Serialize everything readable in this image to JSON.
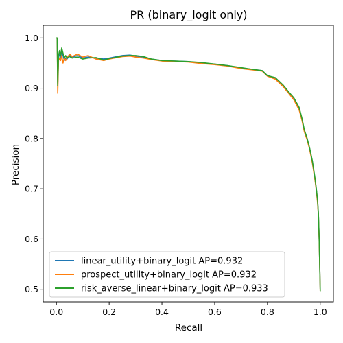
{
  "chart_data": {
    "type": "line",
    "title": "PR (binary_logit only)",
    "xlabel": "Recall",
    "ylabel": "Precision",
    "xlim": [
      -0.05,
      1.05
    ],
    "ylim": [
      0.475,
      1.025
    ],
    "x_ticks": [
      0.0,
      0.2,
      0.4,
      0.6,
      0.8,
      1.0
    ],
    "x_tick_labels": [
      "0.0",
      "0.2",
      "0.4",
      "0.6",
      "0.8",
      "1.0"
    ],
    "y_ticks": [
      0.5,
      0.6,
      0.7,
      0.8,
      0.9,
      1.0
    ],
    "y_tick_labels": [
      "0.5",
      "0.6",
      "0.7",
      "0.8",
      "0.9",
      "1.0"
    ],
    "grid": false,
    "legend_position": "lower-left",
    "series": [
      {
        "name": "linear_utility+binary_logit AP=0.932",
        "color": "#1f77b4",
        "x": [
          0.0,
          0.003,
          0.005,
          0.008,
          0.012,
          0.016,
          0.02,
          0.025,
          0.03,
          0.035,
          0.04,
          0.05,
          0.06,
          0.08,
          0.1,
          0.12,
          0.15,
          0.18,
          0.2,
          0.22,
          0.25,
          0.28,
          0.3,
          0.33,
          0.36,
          0.4,
          0.45,
          0.5,
          0.55,
          0.6,
          0.65,
          0.7,
          0.75,
          0.78,
          0.8,
          0.83,
          0.86,
          0.88,
          0.9,
          0.92,
          0.93,
          0.94,
          0.95,
          0.96,
          0.97,
          0.98,
          0.985,
          0.99,
          0.993,
          0.996,
          0.998,
          1.0
        ],
        "y": [
          1.0,
          1.0,
          0.91,
          0.96,
          0.97,
          0.96,
          0.975,
          0.965,
          0.955,
          0.96,
          0.958,
          0.965,
          0.962,
          0.965,
          0.96,
          0.962,
          0.96,
          0.958,
          0.96,
          0.962,
          0.965,
          0.966,
          0.964,
          0.962,
          0.958,
          0.955,
          0.954,
          0.953,
          0.95,
          0.948,
          0.945,
          0.94,
          0.937,
          0.935,
          0.925,
          0.92,
          0.905,
          0.892,
          0.88,
          0.86,
          0.84,
          0.815,
          0.8,
          0.78,
          0.755,
          0.72,
          0.7,
          0.675,
          0.65,
          0.6,
          0.55,
          0.5
        ]
      },
      {
        "name": "prospect_utility+binary_logit AP=0.932",
        "color": "#ff7f0e",
        "x": [
          0.0,
          0.003,
          0.005,
          0.008,
          0.012,
          0.016,
          0.02,
          0.025,
          0.03,
          0.035,
          0.04,
          0.05,
          0.06,
          0.08,
          0.1,
          0.12,
          0.15,
          0.18,
          0.2,
          0.22,
          0.25,
          0.28,
          0.3,
          0.33,
          0.36,
          0.4,
          0.45,
          0.5,
          0.55,
          0.6,
          0.65,
          0.7,
          0.75,
          0.78,
          0.8,
          0.83,
          0.86,
          0.88,
          0.9,
          0.92,
          0.93,
          0.94,
          0.95,
          0.96,
          0.97,
          0.98,
          0.985,
          0.99,
          0.993,
          0.996,
          0.998,
          1.0
        ],
        "y": [
          1.0,
          1.0,
          0.89,
          0.955,
          0.96,
          0.955,
          0.965,
          0.95,
          0.96,
          0.955,
          0.96,
          0.968,
          0.963,
          0.968,
          0.962,
          0.965,
          0.958,
          0.955,
          0.958,
          0.96,
          0.963,
          0.964,
          0.962,
          0.96,
          0.957,
          0.954,
          0.953,
          0.952,
          0.949,
          0.947,
          0.944,
          0.939,
          0.936,
          0.934,
          0.924,
          0.918,
          0.903,
          0.89,
          0.877,
          0.857,
          0.838,
          0.813,
          0.798,
          0.778,
          0.752,
          0.718,
          0.698,
          0.672,
          0.648,
          0.598,
          0.55,
          0.497
        ]
      },
      {
        "name": "risk_averse_linear+binary_logit AP=0.933",
        "color": "#2ca02c",
        "x": [
          0.0,
          0.003,
          0.005,
          0.008,
          0.012,
          0.016,
          0.02,
          0.025,
          0.03,
          0.035,
          0.04,
          0.05,
          0.06,
          0.08,
          0.1,
          0.12,
          0.15,
          0.18,
          0.2,
          0.22,
          0.25,
          0.28,
          0.3,
          0.33,
          0.36,
          0.4,
          0.45,
          0.5,
          0.55,
          0.6,
          0.65,
          0.7,
          0.75,
          0.78,
          0.8,
          0.83,
          0.86,
          0.88,
          0.9,
          0.92,
          0.93,
          0.94,
          0.95,
          0.96,
          0.97,
          0.98,
          0.985,
          0.99,
          0.993,
          0.996,
          0.998,
          1.0
        ],
        "y": [
          1.0,
          1.0,
          0.905,
          0.965,
          0.975,
          0.965,
          0.98,
          0.97,
          0.96,
          0.965,
          0.96,
          0.963,
          0.96,
          0.962,
          0.958,
          0.96,
          0.961,
          0.956,
          0.959,
          0.961,
          0.964,
          0.965,
          0.965,
          0.963,
          0.958,
          0.955,
          0.954,
          0.953,
          0.951,
          0.948,
          0.945,
          0.941,
          0.937,
          0.935,
          0.925,
          0.921,
          0.906,
          0.893,
          0.881,
          0.862,
          0.842,
          0.817,
          0.801,
          0.781,
          0.756,
          0.722,
          0.701,
          0.677,
          0.652,
          0.602,
          0.552,
          0.497
        ]
      }
    ]
  }
}
